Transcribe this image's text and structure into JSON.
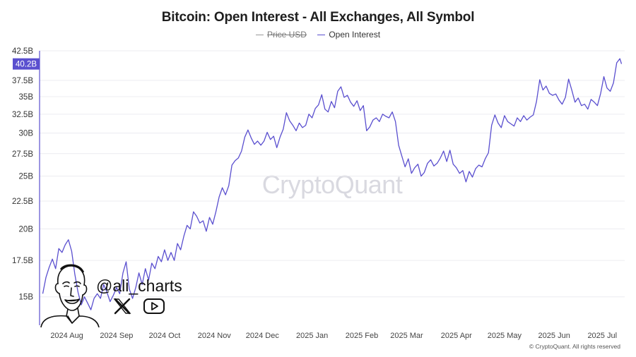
{
  "chart_data": {
    "type": "line",
    "title": "Bitcoin: Open Interest - All Exchanges, All Symbol",
    "legend": [
      {
        "name": "Price USD",
        "color": "#9a9a9a",
        "hidden": true
      },
      {
        "name": "Open Interest",
        "color": "#5a4fcf",
        "hidden": false
      }
    ],
    "y_scale": "log",
    "ylim": [
      13.3,
      42.5
    ],
    "y_ticks": [
      {
        "value": 42.5,
        "label": "42.5B"
      },
      {
        "value": 37.5,
        "label": "37.5B"
      },
      {
        "value": 35,
        "label": "35B"
      },
      {
        "value": 32.5,
        "label": "32.5B"
      },
      {
        "value": 30,
        "label": "30B"
      },
      {
        "value": 27.5,
        "label": "27.5B"
      },
      {
        "value": 25,
        "label": "25B"
      },
      {
        "value": 22.5,
        "label": "22.5B"
      },
      {
        "value": 20,
        "label": "20B"
      },
      {
        "value": 17.5,
        "label": "17.5B"
      },
      {
        "value": 15,
        "label": "15B"
      }
    ],
    "last_value_label": {
      "value": 40.2,
      "label": "40.2B"
    },
    "xlim": [
      "2024-07-15",
      "2025-07-15"
    ],
    "x_ticks": [
      {
        "date": "2024-08-01",
        "label": "2024 Aug"
      },
      {
        "date": "2024-09-01",
        "label": "2024 Sep"
      },
      {
        "date": "2024-10-01",
        "label": "2024 Oct"
      },
      {
        "date": "2024-11-01",
        "label": "2024 Nov"
      },
      {
        "date": "2024-12-01",
        "label": "2024 Dec"
      },
      {
        "date": "2025-01-01",
        "label": "2025 Jan"
      },
      {
        "date": "2025-02-01",
        "label": "2025 Feb"
      },
      {
        "date": "2025-03-01",
        "label": "2025 Mar"
      },
      {
        "date": "2025-04-01",
        "label": "2025 Apr"
      },
      {
        "date": "2025-05-01",
        "label": "2025 May"
      },
      {
        "date": "2025-06-01",
        "label": "2025 Jun"
      },
      {
        "date": "2025-07-01",
        "label": "2025 Jul"
      }
    ],
    "grid": true,
    "legend_position": "top-center",
    "series": [
      {
        "name": "Open Interest",
        "color": "#5a4fcf",
        "points": [
          [
            "2024-07-17",
            15.2
          ],
          [
            "2024-07-19",
            16.3
          ],
          [
            "2024-07-21",
            17.0
          ],
          [
            "2024-07-23",
            17.6
          ],
          [
            "2024-07-25",
            16.9
          ],
          [
            "2024-07-27",
            18.4
          ],
          [
            "2024-07-29",
            18.1
          ],
          [
            "2024-07-31",
            18.7
          ],
          [
            "2024-08-02",
            19.1
          ],
          [
            "2024-08-04",
            18.2
          ],
          [
            "2024-08-06",
            16.5
          ],
          [
            "2024-08-08",
            15.3
          ],
          [
            "2024-08-10",
            14.5
          ],
          [
            "2024-08-12",
            15.0
          ],
          [
            "2024-08-14",
            14.6
          ],
          [
            "2024-08-16",
            14.2
          ],
          [
            "2024-08-18",
            14.9
          ],
          [
            "2024-08-20",
            15.2
          ],
          [
            "2024-08-22",
            14.9
          ],
          [
            "2024-08-24",
            15.8
          ],
          [
            "2024-08-26",
            15.3
          ],
          [
            "2024-08-28",
            14.7
          ],
          [
            "2024-08-30",
            15.1
          ],
          [
            "2024-09-01",
            15.6
          ],
          [
            "2024-09-03",
            15.2
          ],
          [
            "2024-09-05",
            16.6
          ],
          [
            "2024-09-07",
            17.4
          ],
          [
            "2024-09-09",
            15.5
          ],
          [
            "2024-09-11",
            14.9
          ],
          [
            "2024-09-13",
            15.6
          ],
          [
            "2024-09-15",
            16.6
          ],
          [
            "2024-09-17",
            15.8
          ],
          [
            "2024-09-19",
            16.9
          ],
          [
            "2024-09-21",
            16.1
          ],
          [
            "2024-09-23",
            17.3
          ],
          [
            "2024-09-25",
            16.9
          ],
          [
            "2024-09-27",
            17.8
          ],
          [
            "2024-09-29",
            17.4
          ],
          [
            "2024-10-01",
            18.3
          ],
          [
            "2024-10-03",
            17.5
          ],
          [
            "2024-10-05",
            18.1
          ],
          [
            "2024-10-07",
            17.5
          ],
          [
            "2024-10-09",
            18.8
          ],
          [
            "2024-10-11",
            18.3
          ],
          [
            "2024-10-13",
            19.4
          ],
          [
            "2024-10-15",
            20.3
          ],
          [
            "2024-10-17",
            20.0
          ],
          [
            "2024-10-19",
            21.5
          ],
          [
            "2024-10-21",
            21.1
          ],
          [
            "2024-10-23",
            20.5
          ],
          [
            "2024-10-25",
            20.7
          ],
          [
            "2024-10-27",
            19.8
          ],
          [
            "2024-10-29",
            21.0
          ],
          [
            "2024-10-31",
            20.4
          ],
          [
            "2024-11-02",
            21.5
          ],
          [
            "2024-11-04",
            22.9
          ],
          [
            "2024-11-06",
            23.8
          ],
          [
            "2024-11-08",
            23.1
          ],
          [
            "2024-11-10",
            24.0
          ],
          [
            "2024-11-12",
            26.2
          ],
          [
            "2024-11-14",
            26.7
          ],
          [
            "2024-11-16",
            27.0
          ],
          [
            "2024-11-18",
            27.8
          ],
          [
            "2024-11-20",
            29.5
          ],
          [
            "2024-11-22",
            30.4
          ],
          [
            "2024-11-24",
            29.4
          ],
          [
            "2024-11-26",
            28.6
          ],
          [
            "2024-11-28",
            29.0
          ],
          [
            "2024-11-30",
            28.5
          ],
          [
            "2024-12-02",
            29.0
          ],
          [
            "2024-12-04",
            30.1
          ],
          [
            "2024-12-06",
            29.2
          ],
          [
            "2024-12-08",
            29.6
          ],
          [
            "2024-12-10",
            28.2
          ],
          [
            "2024-12-12",
            29.5
          ],
          [
            "2024-12-14",
            30.5
          ],
          [
            "2024-12-16",
            32.7
          ],
          [
            "2024-12-18",
            31.6
          ],
          [
            "2024-12-20",
            31.0
          ],
          [
            "2024-12-22",
            30.3
          ],
          [
            "2024-12-24",
            31.3
          ],
          [
            "2024-12-26",
            30.7
          ],
          [
            "2024-12-28",
            31.0
          ],
          [
            "2024-12-30",
            32.5
          ],
          [
            "2025-01-01",
            32.0
          ],
          [
            "2025-01-03",
            33.3
          ],
          [
            "2025-01-05",
            33.8
          ],
          [
            "2025-01-07",
            35.3
          ],
          [
            "2025-01-09",
            33.2
          ],
          [
            "2025-01-11",
            32.8
          ],
          [
            "2025-01-13",
            34.3
          ],
          [
            "2025-01-15",
            33.4
          ],
          [
            "2025-01-17",
            35.8
          ],
          [
            "2025-01-19",
            36.5
          ],
          [
            "2025-01-21",
            34.9
          ],
          [
            "2025-01-23",
            35.2
          ],
          [
            "2025-01-25",
            34.2
          ],
          [
            "2025-01-27",
            33.6
          ],
          [
            "2025-01-29",
            34.4
          ],
          [
            "2025-01-31",
            33.0
          ],
          [
            "2025-02-02",
            33.7
          ],
          [
            "2025-02-04",
            30.3
          ],
          [
            "2025-02-06",
            30.8
          ],
          [
            "2025-02-08",
            31.7
          ],
          [
            "2025-02-10",
            32.0
          ],
          [
            "2025-02-12",
            31.5
          ],
          [
            "2025-02-14",
            32.5
          ],
          [
            "2025-02-16",
            32.2
          ],
          [
            "2025-02-18",
            32.0
          ],
          [
            "2025-02-20",
            32.8
          ],
          [
            "2025-02-22",
            31.5
          ],
          [
            "2025-02-24",
            28.5
          ],
          [
            "2025-02-26",
            27.2
          ],
          [
            "2025-02-28",
            26.0
          ],
          [
            "2025-03-02",
            26.9
          ],
          [
            "2025-03-04",
            25.3
          ],
          [
            "2025-03-06",
            25.9
          ],
          [
            "2025-03-08",
            26.3
          ],
          [
            "2025-03-10",
            25.0
          ],
          [
            "2025-03-12",
            25.4
          ],
          [
            "2025-03-14",
            26.4
          ],
          [
            "2025-03-16",
            26.8
          ],
          [
            "2025-03-18",
            26.1
          ],
          [
            "2025-03-20",
            26.4
          ],
          [
            "2025-03-22",
            27.0
          ],
          [
            "2025-03-24",
            27.8
          ],
          [
            "2025-03-26",
            26.6
          ],
          [
            "2025-03-28",
            27.9
          ],
          [
            "2025-03-30",
            26.3
          ],
          [
            "2025-04-01",
            25.9
          ],
          [
            "2025-04-03",
            25.3
          ],
          [
            "2025-04-05",
            25.6
          ],
          [
            "2025-04-07",
            24.4
          ],
          [
            "2025-04-09",
            25.5
          ],
          [
            "2025-04-11",
            24.9
          ],
          [
            "2025-04-13",
            25.8
          ],
          [
            "2025-04-15",
            26.2
          ],
          [
            "2025-04-17",
            26.0
          ],
          [
            "2025-04-19",
            26.9
          ],
          [
            "2025-04-21",
            27.6
          ],
          [
            "2025-04-23",
            31.0
          ],
          [
            "2025-04-25",
            32.4
          ],
          [
            "2025-04-27",
            31.3
          ],
          [
            "2025-04-29",
            30.7
          ],
          [
            "2025-05-01",
            32.3
          ],
          [
            "2025-05-03",
            31.5
          ],
          [
            "2025-05-05",
            31.2
          ],
          [
            "2025-05-07",
            30.9
          ],
          [
            "2025-05-09",
            32.0
          ],
          [
            "2025-05-11",
            31.5
          ],
          [
            "2025-05-13",
            32.3
          ],
          [
            "2025-05-15",
            31.7
          ],
          [
            "2025-05-17",
            32.1
          ],
          [
            "2025-05-19",
            32.4
          ],
          [
            "2025-05-21",
            34.3
          ],
          [
            "2025-05-23",
            37.6
          ],
          [
            "2025-05-25",
            36.0
          ],
          [
            "2025-05-27",
            36.6
          ],
          [
            "2025-05-29",
            35.5
          ],
          [
            "2025-05-31",
            35.2
          ],
          [
            "2025-06-02",
            35.4
          ],
          [
            "2025-06-04",
            34.5
          ],
          [
            "2025-06-06",
            33.9
          ],
          [
            "2025-06-08",
            34.9
          ],
          [
            "2025-06-10",
            37.7
          ],
          [
            "2025-06-12",
            36.0
          ],
          [
            "2025-06-14",
            34.2
          ],
          [
            "2025-06-16",
            34.8
          ],
          [
            "2025-06-18",
            33.7
          ],
          [
            "2025-06-20",
            33.9
          ],
          [
            "2025-06-22",
            33.2
          ],
          [
            "2025-06-24",
            34.6
          ],
          [
            "2025-06-26",
            34.2
          ],
          [
            "2025-06-28",
            33.7
          ],
          [
            "2025-06-30",
            35.5
          ],
          [
            "2025-07-02",
            38.1
          ],
          [
            "2025-07-04",
            36.3
          ],
          [
            "2025-07-06",
            35.8
          ],
          [
            "2025-07-08",
            37.1
          ],
          [
            "2025-07-10",
            40.4
          ],
          [
            "2025-07-12",
            41.1
          ],
          [
            "2025-07-13",
            40.2
          ]
        ]
      }
    ]
  },
  "annotations": {
    "watermark": "CryptoQuant",
    "credit": "© CryptoQuant. All rights reserved",
    "handle": "@ali_charts",
    "portrait_icon": "portrait-illustration",
    "social_icons": [
      "x-logo-icon",
      "youtube-icon"
    ]
  }
}
